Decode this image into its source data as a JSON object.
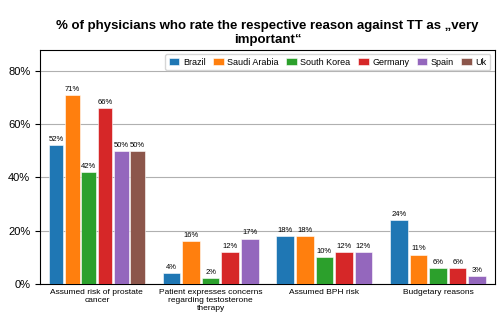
{
  "chart_data": {
    "type": "bar",
    "title": "% of physicians who rate the respective reason against TT as „very important“",
    "categories": [
      "Assumed risk of prostate\ncancer",
      "Patient expresses concerns\nregarding testosterone\ntherapy",
      "Assumed BPH risk",
      "Budgetary reasons"
    ],
    "series": [
      {
        "name": "Brazil",
        "values": [
          52,
          4,
          18,
          24
        ],
        "value_labels": [
          "52%",
          "4%",
          "18%",
          "24%"
        ]
      },
      {
        "name": "Saudi Arabia",
        "values": [
          71,
          16,
          18,
          11
        ],
        "value_labels": [
          "71%",
          "16%",
          "18%",
          "11%"
        ]
      },
      {
        "name": "South Korea",
        "values": [
          42,
          2,
          10,
          6
        ],
        "value_labels": [
          "42%",
          "2%",
          "10%",
          "6%"
        ]
      },
      {
        "name": "Germany",
        "values": [
          66,
          12,
          12,
          6
        ],
        "value_labels": [
          "66%",
          "12%",
          "12%",
          "6%"
        ]
      },
      {
        "name": "Spain",
        "values": [
          50,
          17,
          12,
          3
        ],
        "value_labels": [
          "50%",
          "17%",
          "12%",
          "3%"
        ]
      },
      {
        "name": "Uk",
        "values": [
          50,
          null,
          null,
          null
        ],
        "value_labels": [
          "50%",
          null,
          null,
          null
        ]
      }
    ],
    "ylim": [
      0,
      88
    ],
    "yticks": [
      {
        "value": 0,
        "label": "0%"
      },
      {
        "value": 20,
        "label": "20%"
      },
      {
        "value": 40,
        "label": "40%"
      },
      {
        "value": 60,
        "label": "60%"
      },
      {
        "value": 80,
        "label": "80%"
      }
    ],
    "grid": true,
    "legend": "upper right",
    "data_labels": true
  }
}
